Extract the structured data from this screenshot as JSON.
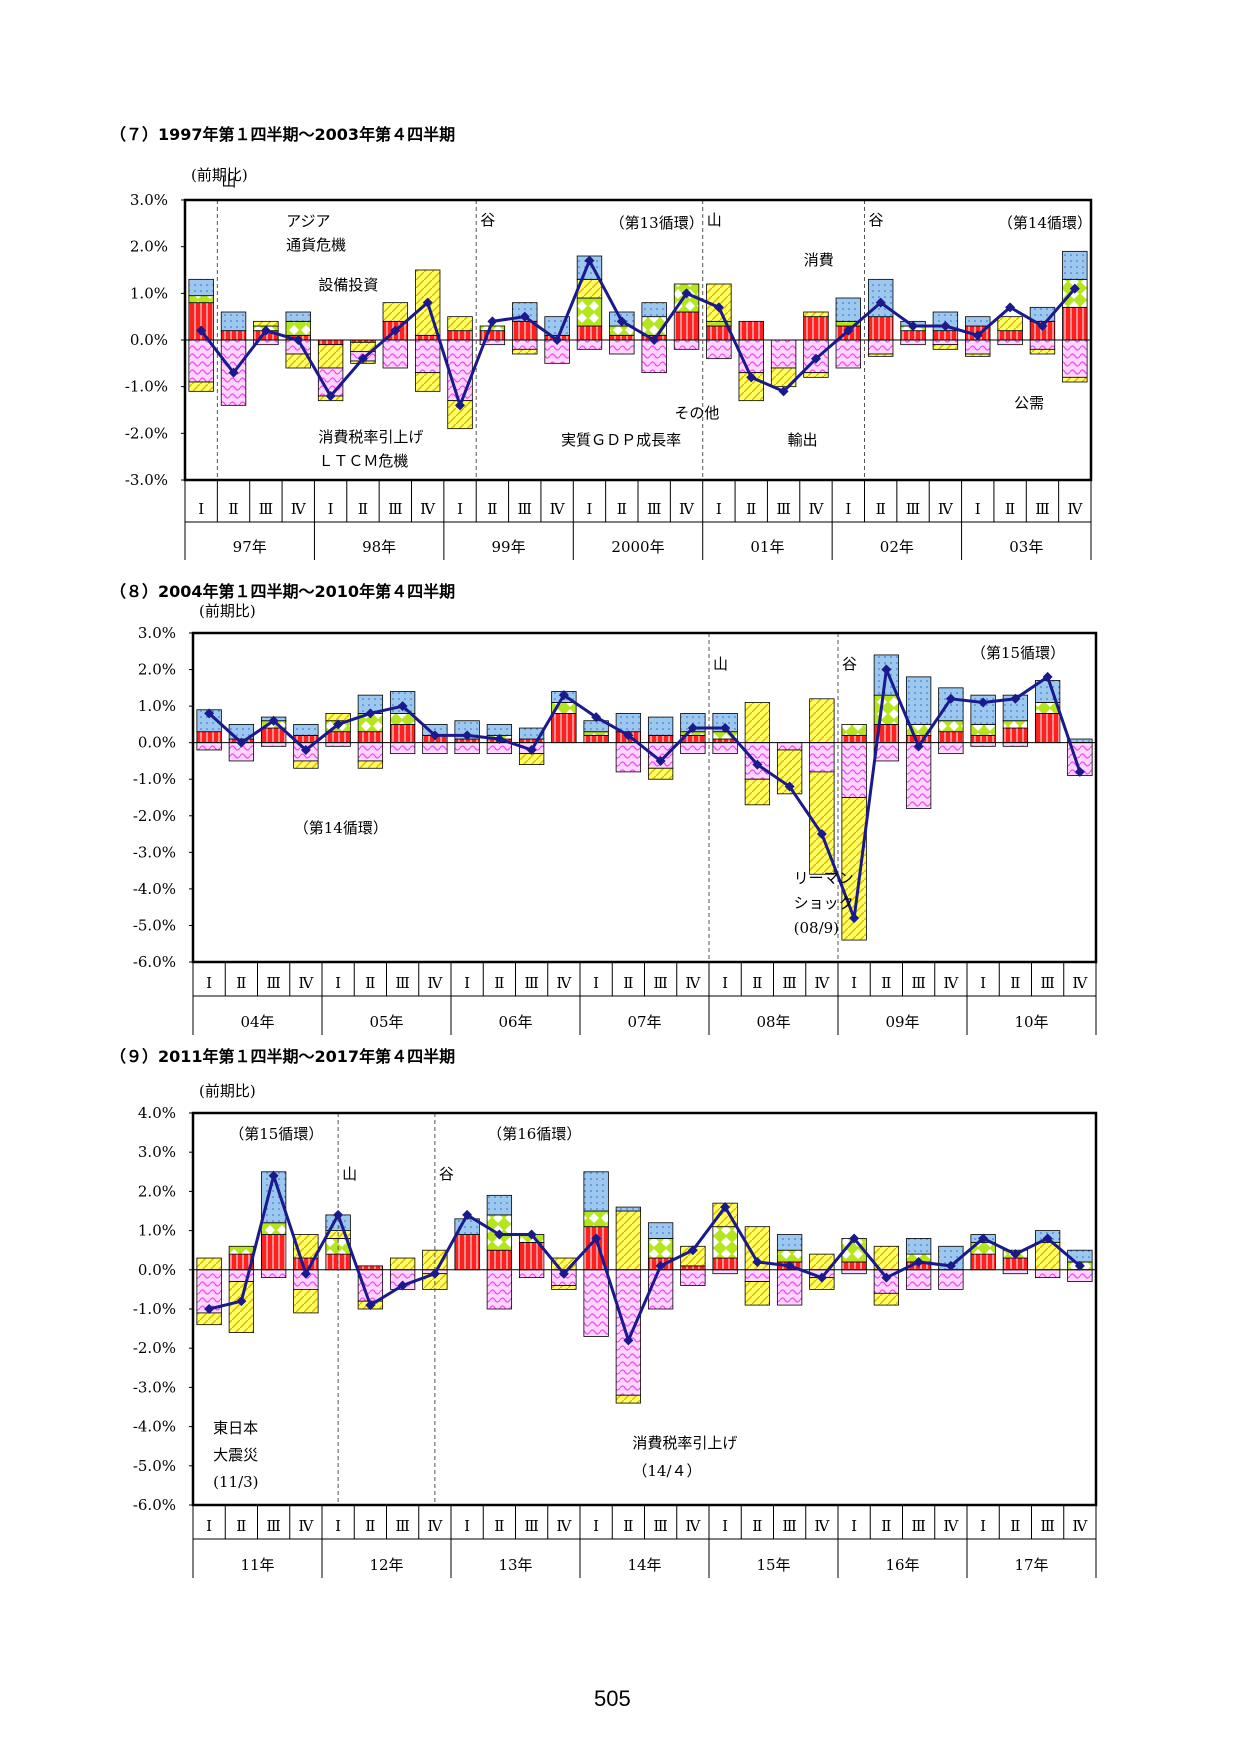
{
  "page_number": "505",
  "colors": {
    "line": "#1a1a8c",
    "consumption": "#ff2020",
    "investment": "#ffff66",
    "public": "#ffff66",
    "export": "#9cc8f0",
    "other": "#ff80ff",
    "green": "#b5e61d"
  },
  "chart_data": [
    {
      "type": "bar",
      "stacked": true,
      "title": "（７）1997年第１四半期～2003年第４四半期",
      "unit": "(前期比)",
      "ylim": [
        -3,
        3
      ],
      "yticks": [
        "3.0%",
        "2.0%",
        "1.0%",
        "0.0%",
        "-1.0%",
        "-2.0%",
        "-3.0%"
      ],
      "quarters": [
        "Ⅰ",
        "Ⅱ",
        "Ⅲ",
        "Ⅳ"
      ],
      "years": [
        "97年",
        "98年",
        "99年",
        "2000年",
        "01年",
        "02年",
        "03年"
      ],
      "gdp": [
        0.2,
        -0.7,
        0.2,
        0.0,
        -1.2,
        -0.4,
        0.2,
        0.8,
        -1.4,
        0.4,
        0.5,
        0.0,
        1.7,
        0.4,
        0.0,
        1.0,
        0.7,
        -0.8,
        -1.1,
        -0.4,
        0.2,
        0.8,
        0.3,
        0.3,
        0.1,
        0.7,
        0.3,
        1.1
      ],
      "stacks": [
        [
          [
            0.8,
            0.15,
            0.0,
            0.35,
            -0.9,
            -0.2
          ],
          [
            0.2,
            0.0,
            0.0,
            0.4,
            -1.4,
            0.0
          ],
          [
            0.2,
            0.1,
            0.1,
            0.0,
            -0.1,
            0.0
          ],
          [
            0.1,
            0.3,
            0.0,
            0.2,
            -0.3,
            -0.3
          ],
          [
            -0.1,
            0.0,
            -0.5,
            0.0,
            -0.6,
            -0.1
          ],
          [
            -0.05,
            0.0,
            -0.2,
            0.0,
            -0.2,
            -0.05
          ],
          [
            0.4,
            0.0,
            0.4,
            0.0,
            -0.6,
            0.0
          ],
          [
            0.1,
            0.0,
            1.4,
            0.0,
            -0.7,
            -0.4
          ],
          [
            0.2,
            0.0,
            0.3,
            0.0,
            -1.3,
            -0.6
          ],
          [
            0.2,
            0.1,
            0.0,
            0.0,
            -0.1,
            0.0
          ],
          [
            0.4,
            0.0,
            0.0,
            0.4,
            -0.2,
            -0.1
          ],
          [
            0.1,
            0.0,
            0.0,
            0.4,
            -0.5,
            0.0
          ],
          [
            0.3,
            0.6,
            0.4,
            0.5,
            -0.2,
            0.0
          ],
          [
            0.1,
            0.2,
            0.0,
            0.3,
            -0.3,
            0.0
          ],
          [
            0.1,
            0.4,
            0.0,
            0.3,
            -0.7,
            0.0
          ],
          [
            0.6,
            0.6,
            0.0,
            0.0,
            -0.2,
            0.0
          ],
          [
            0.3,
            0.1,
            0.8,
            0.0,
            -0.4,
            0.0
          ],
          [
            0.4,
            0.0,
            0.0,
            0.0,
            -0.7,
            -0.6
          ],
          [
            0.0,
            0.0,
            0.0,
            0.0,
            -0.6,
            -0.4
          ],
          [
            0.5,
            0.0,
            0.1,
            0.0,
            -0.7,
            -0.1
          ],
          [
            0.3,
            0.1,
            0.0,
            0.5,
            -0.6,
            0.0
          ],
          [
            0.5,
            0.0,
            0.0,
            0.8,
            -0.3,
            -0.05
          ],
          [
            0.2,
            0.1,
            0.0,
            0.1,
            -0.1,
            0.0
          ],
          [
            0.2,
            0.0,
            0.0,
            0.4,
            -0.1,
            -0.1
          ],
          [
            0.3,
            0.0,
            0.0,
            0.2,
            -0.3,
            -0.05
          ],
          [
            0.2,
            0.0,
            0.3,
            0.0,
            -0.1,
            0.0
          ],
          [
            0.4,
            0.0,
            0.0,
            0.3,
            -0.2,
            -0.1
          ],
          [
            0.7,
            0.6,
            0.0,
            0.6,
            -0.8,
            -0.1
          ]
        ]
      ],
      "annotations": [
        {
          "text": "山",
          "q": 1.0
        },
        {
          "text": "アジア",
          "q": 3.0
        },
        {
          "text": "通貨危機",
          "q": 3.0
        },
        {
          "text": "設備投資",
          "q": 4.0
        },
        {
          "text": "谷",
          "q": 9.0
        },
        {
          "text": "（第13循環）",
          "q": 13.0
        },
        {
          "text": "山",
          "q": 16.0
        },
        {
          "text": "消費",
          "q": 19.0
        },
        {
          "text": "谷",
          "q": 21.0
        },
        {
          "text": "（第14循環）",
          "q": 25.0
        },
        {
          "text": "その他",
          "q": 15.0
        },
        {
          "text": "公需",
          "q": 25.5
        },
        {
          "text": "輸出",
          "q": 18.5
        },
        {
          "text": "消費税率引上げ",
          "q": 4.0
        },
        {
          "text": "ＬＴＣＭ危機",
          "q": 4.0
        },
        {
          "text": "実質ＧＤＰ成長率",
          "q": 11.5
        }
      ],
      "dashed_lines": [
        1,
        9,
        16,
        21
      ]
    },
    {
      "type": "bar",
      "stacked": true,
      "title": "（８）2004年第１四半期～2010年第４四半期",
      "unit": "(前期比)",
      "ylim": [
        -6,
        3
      ],
      "yticks": [
        "3.0%",
        "2.0%",
        "1.0%",
        "0.0%",
        "-1.0%",
        "-2.0%",
        "-3.0%",
        "-4.0%",
        "-5.0%",
        "-6.0%"
      ],
      "quarters": [
        "Ⅰ",
        "Ⅱ",
        "Ⅲ",
        "Ⅳ"
      ],
      "years": [
        "04年",
        "05年",
        "06年",
        "07年",
        "08年",
        "09年",
        "10年"
      ],
      "gdp": [
        0.8,
        0.0,
        0.6,
        -0.2,
        0.5,
        0.8,
        1.0,
        0.2,
        0.2,
        0.1,
        -0.2,
        1.3,
        0.7,
        0.2,
        -0.5,
        0.4,
        0.4,
        -0.6,
        -1.2,
        -2.5,
        -4.8,
        2.0,
        -0.1,
        1.2,
        1.1,
        1.2,
        1.8,
        -0.8
      ],
      "stacks": [
        [
          [
            0.3,
            0.0,
            0.0,
            0.6,
            -0.2,
            0.0
          ],
          [
            0.1,
            0.0,
            0.0,
            0.4,
            -0.5,
            0.0
          ],
          [
            0.4,
            0.2,
            0.0,
            0.1,
            -0.1,
            0.0
          ],
          [
            0.2,
            0.0,
            0.0,
            0.3,
            -0.5,
            -0.2
          ],
          [
            0.3,
            0.3,
            0.2,
            0.0,
            -0.1,
            0.0
          ],
          [
            0.3,
            0.5,
            0.0,
            0.5,
            -0.5,
            -0.2
          ],
          [
            0.5,
            0.3,
            0.0,
            0.6,
            -0.3,
            0.0
          ],
          [
            0.2,
            0.0,
            0.0,
            0.3,
            -0.3,
            0.0
          ],
          [
            0.1,
            0.0,
            0.0,
            0.5,
            -0.3,
            0.0
          ],
          [
            0.1,
            0.1,
            0.0,
            0.3,
            -0.3,
            0.0
          ],
          [
            0.1,
            0.0,
            0.0,
            0.3,
            -0.3,
            -0.3
          ],
          [
            0.8,
            0.3,
            0.0,
            0.3,
            0.0,
            0.0
          ],
          [
            0.2,
            0.1,
            0.0,
            0.3,
            0.0,
            0.0
          ],
          [
            0.3,
            0.0,
            0.0,
            0.5,
            -0.8,
            0.0
          ],
          [
            0.2,
            0.0,
            0.0,
            0.5,
            -0.7,
            -0.3
          ],
          [
            0.2,
            0.1,
            0.0,
            0.5,
            -0.3,
            0.0
          ],
          [
            0.1,
            0.2,
            0.0,
            0.5,
            -0.3,
            0.0
          ],
          [
            0.0,
            0.0,
            1.1,
            0.0,
            -1.0,
            -0.7
          ],
          [
            0.0,
            0.0,
            0.0,
            0.0,
            -0.2,
            -1.2
          ],
          [
            0.0,
            0.0,
            1.2,
            0.0,
            -0.8,
            -2.8
          ],
          [
            0.2,
            0.3,
            0.0,
            0.0,
            -1.5,
            -3.9
          ],
          [
            0.5,
            0.8,
            0.0,
            1.1,
            -0.5,
            0.0
          ],
          [
            0.2,
            0.3,
            0.0,
            1.3,
            -1.8,
            0.0
          ],
          [
            0.3,
            0.3,
            0.0,
            0.9,
            -0.3,
            0.0
          ],
          [
            0.2,
            0.3,
            0.0,
            0.8,
            -0.1,
            0.0
          ],
          [
            0.4,
            0.2,
            0.0,
            0.7,
            -0.1,
            0.0
          ],
          [
            0.8,
            0.3,
            0.0,
            0.6,
            0.0,
            0.0
          ],
          [
            0.0,
            0.0,
            0.0,
            0.1,
            -0.9,
            0.0
          ]
        ]
      ],
      "annotations": [
        {
          "text": "山",
          "q": 16.0
        },
        {
          "text": "谷",
          "q": 20.0
        },
        {
          "text": "（第15循環）",
          "q": 24.0
        },
        {
          "text": "（第14循環）",
          "q": 3.0
        },
        {
          "text": "リーマン",
          "q": 18.5
        },
        {
          "text": "ショック",
          "q": 18.5
        },
        {
          "text": "(08/9)",
          "q": 18.5
        }
      ],
      "dashed_lines": [
        16,
        20
      ]
    },
    {
      "type": "bar",
      "stacked": true,
      "title": "（９）2011年第１四半期～2017年第４四半期",
      "unit": "(前期比)",
      "ylim": [
        -6,
        4
      ],
      "yticks": [
        "4.0%",
        "3.0%",
        "2.0%",
        "1.0%",
        "0.0%",
        "-1.0%",
        "-2.0%",
        "-3.0%",
        "-4.0%",
        "-5.0%",
        "-6.0%"
      ],
      "quarters": [
        "Ⅰ",
        "Ⅱ",
        "Ⅲ",
        "Ⅳ"
      ],
      "years": [
        "11年",
        "12年",
        "13年",
        "14年",
        "15年",
        "16年",
        "17年"
      ],
      "gdp": [
        -1.0,
        -0.8,
        2.4,
        -0.1,
        1.4,
        -0.9,
        -0.4,
        -0.1,
        1.4,
        0.9,
        0.9,
        -0.1,
        0.8,
        -1.8,
        0.1,
        0.5,
        1.6,
        0.2,
        0.1,
        -0.2,
        0.8,
        -0.2,
        0.2,
        0.1,
        0.8,
        0.4,
        0.8,
        0.1
      ],
      "stacks": [
        [
          [
            0.0,
            0.0,
            0.3,
            0.0,
            -1.1,
            -0.3
          ],
          [
            0.4,
            0.2,
            0.0,
            0.0,
            -0.3,
            -1.3
          ],
          [
            0.9,
            0.3,
            0.0,
            1.3,
            -0.2,
            0.0
          ],
          [
            0.3,
            0.0,
            0.6,
            0.0,
            -0.5,
            -0.6
          ],
          [
            0.4,
            0.4,
            0.2,
            0.4,
            0.0,
            0.0
          ],
          [
            0.1,
            0.0,
            0.0,
            0.0,
            -0.8,
            -0.2
          ],
          [
            0.0,
            0.0,
            0.3,
            0.0,
            -0.5,
            0.0
          ],
          [
            0.0,
            0.0,
            0.5,
            0.0,
            -0.1,
            -0.4
          ],
          [
            0.9,
            0.0,
            0.0,
            0.4,
            0.0,
            0.0
          ],
          [
            0.5,
            0.9,
            0.0,
            0.5,
            -1.0,
            0.0
          ],
          [
            0.7,
            0.2,
            0.0,
            0.0,
            -0.2,
            0.0
          ],
          [
            0.0,
            0.0,
            0.3,
            0.0,
            -0.4,
            -0.1
          ],
          [
            1.1,
            0.4,
            0.0,
            1.0,
            -1.7,
            0.0
          ],
          [
            0.0,
            0.0,
            1.5,
            0.1,
            -3.2,
            -0.2
          ],
          [
            0.3,
            0.5,
            0.0,
            0.4,
            -1.0,
            0.0
          ],
          [
            0.1,
            0.0,
            0.5,
            0.0,
            -0.4,
            0.0
          ],
          [
            0.3,
            0.8,
            0.6,
            0.0,
            -0.1,
            0.0
          ],
          [
            0.0,
            0.0,
            1.1,
            0.0,
            -0.3,
            -0.6
          ],
          [
            0.2,
            0.3,
            0.0,
            0.4,
            -0.9,
            0.0
          ],
          [
            0.0,
            0.0,
            0.4,
            0.0,
            -0.2,
            -0.3
          ],
          [
            0.2,
            0.6,
            0.0,
            0.0,
            -0.1,
            0.0
          ],
          [
            0.0,
            0.0,
            0.6,
            0.0,
            -0.6,
            -0.3
          ],
          [
            0.2,
            0.2,
            0.0,
            0.4,
            -0.5,
            0.0
          ],
          [
            0.0,
            0.0,
            0.0,
            0.6,
            -0.5,
            0.0
          ],
          [
            0.4,
            0.3,
            0.0,
            0.2,
            0.0,
            0.0
          ],
          [
            0.3,
            0.2,
            0.0,
            0.0,
            -0.1,
            0.0
          ],
          [
            0.0,
            0.0,
            0.7,
            0.3,
            -0.2,
            0.0
          ],
          [
            0.0,
            0.2,
            0.0,
            0.3,
            -0.3,
            0.0
          ]
        ]
      ],
      "annotations": [
        {
          "text": "（第15循環）",
          "q": 1.0
        },
        {
          "text": "山",
          "q": 4.5
        },
        {
          "text": "谷",
          "q": 7.5
        },
        {
          "text": "（第16循環）",
          "q": 9.0
        },
        {
          "text": "東日本",
          "q": 0.5
        },
        {
          "text": "大震災",
          "q": 0.5
        },
        {
          "text": "(11/3)",
          "q": 0.5
        },
        {
          "text": "消費税率引上げ",
          "q": 13.5
        },
        {
          "text": "（14/４）",
          "q": 13.5
        }
      ],
      "dashed_lines": [
        4.5,
        7.5
      ]
    }
  ]
}
